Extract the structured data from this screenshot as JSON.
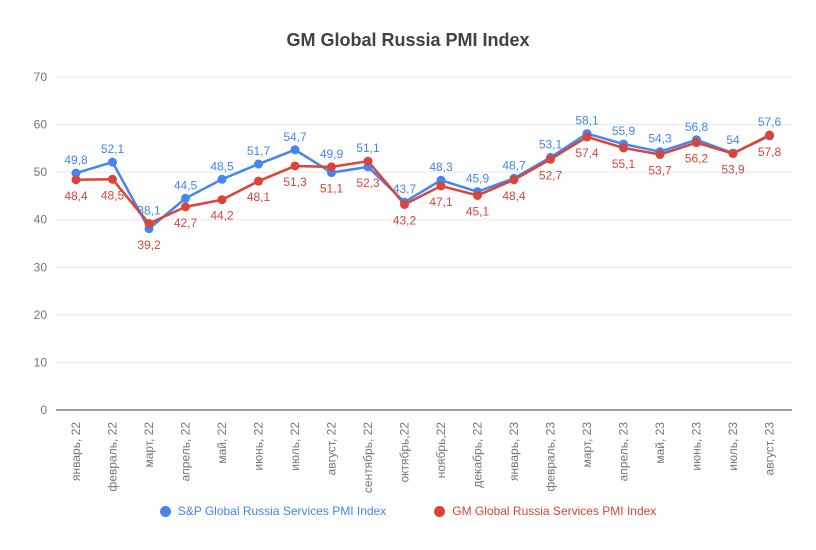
{
  "page": {
    "background": "#ffffff"
  },
  "chart_data": {
    "type": "line",
    "title": "GM Global Russia PMI Index",
    "xlabel": "",
    "ylabel": "",
    "ylim": [
      0,
      70
    ],
    "yticks": [
      0,
      10,
      20,
      30,
      40,
      50,
      60,
      70
    ],
    "grid": true,
    "legend_position": "bottom",
    "axis_text_color": "#757575",
    "gridline_color": "#e8e8e8",
    "baseline_color": "#424242",
    "categories": [
      "январь, 22",
      "февраль, 22",
      "март, 22",
      "апрель, 22",
      "май, 22",
      "июнь, 22",
      "июль, 22",
      "август, 22",
      "сентябрь, 22",
      "октябрь,22",
      "ноябрь,22",
      "декабрь, 22",
      "январь, 23",
      "февраль, 23",
      "март, 23",
      "апрель, 23",
      "май, 23",
      "июнь, 23",
      "июль, 23",
      "август, 23"
    ],
    "series": [
      {
        "name": "S&P Global Russia Services PMI Index",
        "color": "#4285f4",
        "values": [
          49.8,
          52.1,
          38.1,
          44.5,
          48.5,
          51.7,
          54.7,
          49.9,
          51.1,
          43.7,
          48.3,
          45.9,
          48.7,
          53.1,
          58.1,
          55.9,
          54.3,
          56.8,
          54,
          57.6
        ]
      },
      {
        "name": "GM Global Russia Services PMI Index",
        "color": "#db4437",
        "values": [
          48.4,
          48.5,
          39.2,
          42.7,
          44.2,
          48.1,
          51.3,
          51.1,
          52.3,
          43.2,
          47.1,
          45.1,
          48.4,
          52.7,
          57.4,
          55.1,
          53.7,
          56.2,
          53.9,
          57.8
        ]
      }
    ]
  }
}
